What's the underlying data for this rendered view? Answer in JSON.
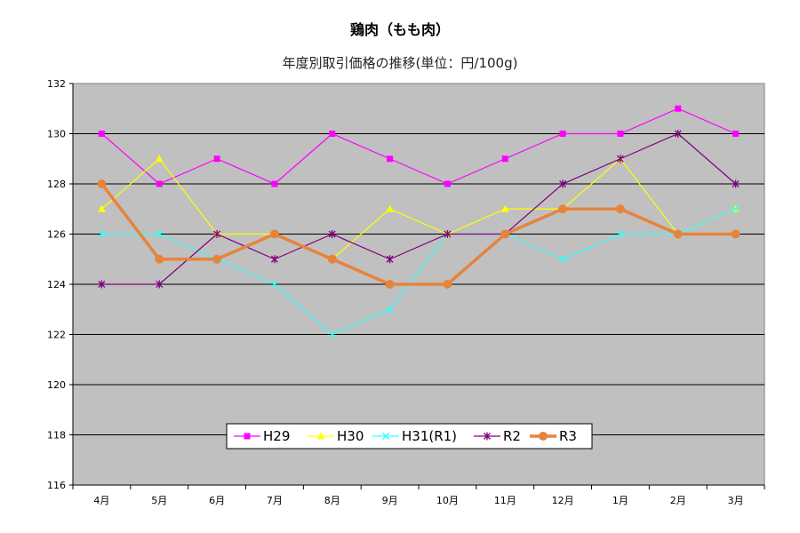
{
  "chart_data": {
    "type": "line",
    "title": "鶏肉（もも肉）",
    "subtitle": "年度別取引価格の推移(単位：円/100g)",
    "categories": [
      "4月",
      "5月",
      "6月",
      "7月",
      "8月",
      "9月",
      "10月",
      "11月",
      "12月",
      "1月",
      "2月",
      "3月"
    ],
    "ylim": [
      116,
      132
    ],
    "yticks": [
      116,
      118,
      120,
      122,
      124,
      126,
      128,
      130,
      132
    ],
    "grid": true,
    "legend_position": "bottom-center",
    "series": [
      {
        "name": "H29",
        "color": "#ff00ff",
        "marker": "square",
        "values": [
          130,
          128,
          129,
          128,
          130,
          129,
          128,
          129,
          130,
          130,
          131,
          130
        ]
      },
      {
        "name": "H30",
        "color": "#ffff00",
        "marker": "triangle",
        "values": [
          127,
          129,
          126,
          126,
          125,
          127,
          126,
          127,
          127,
          129,
          126,
          127
        ]
      },
      {
        "name": "H31(R1)",
        "color": "#33ffff",
        "marker": "x",
        "values": [
          126,
          126,
          125,
          124,
          122,
          123,
          126,
          126,
          125,
          126,
          126,
          127
        ]
      },
      {
        "name": "R2",
        "color": "#800080",
        "marker": "star",
        "values": [
          124,
          124,
          126,
          125,
          126,
          125,
          126,
          126,
          128,
          129,
          130,
          128
        ]
      },
      {
        "name": "R3",
        "color": "#e6843c",
        "marker": "circle",
        "values": [
          128,
          125,
          125,
          126,
          125,
          124,
          124,
          126,
          127,
          127,
          126,
          126
        ]
      }
    ]
  }
}
